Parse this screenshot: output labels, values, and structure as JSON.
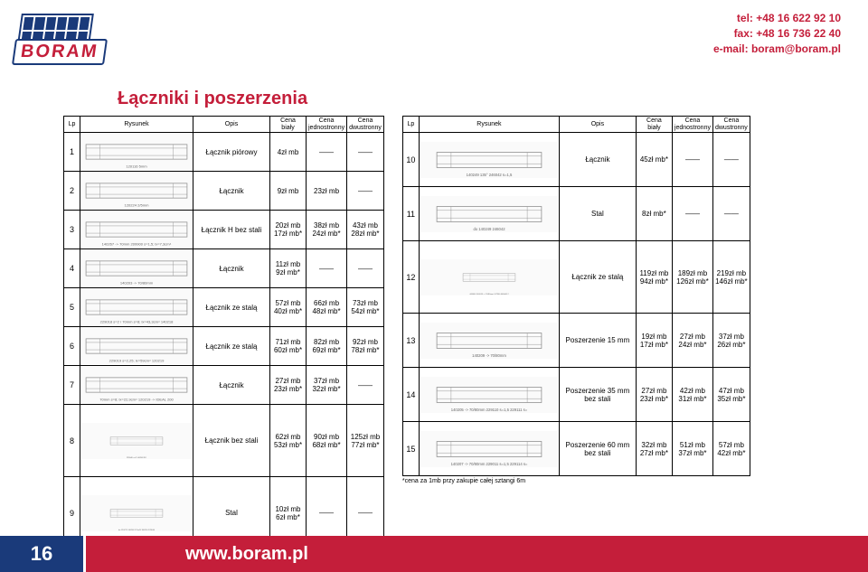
{
  "logo_text": "BORAM",
  "contact": {
    "tel": "tel: +48 16 622 92 10",
    "fax": "fax: +48 16 736 22 40",
    "email": "e-mail: boram@boram.pl"
  },
  "page_title": "Łączniki i poszerzenia",
  "headers": {
    "lp": "Lp",
    "rysunek": "Rysunek",
    "opis": "Opis",
    "cena_bialy": "Cena",
    "cena_bialy_sub": "biały",
    "cena_jedno": "Cena",
    "cena_jedno_sub": "jednostronny",
    "cena_dwu": "Cena",
    "cena_dwu_sub": "dwustronny"
  },
  "left_rows": [
    {
      "lp": "1",
      "draw": "120116 5mm",
      "opis": "Łącznik piórowy",
      "c1": "4zł mb",
      "c2": "——",
      "c3": "——"
    },
    {
      "lp": "2",
      "draw": "120224 2/5mm",
      "opis": "Łącznik",
      "c1": "9zł mb",
      "c2": "23zł mb",
      "c3": "——"
    },
    {
      "lp": "3",
      "draw": "140267 -> 70mm 209900 s=1,5; lx=7,3cm⁴",
      "opis": "Łącznik H bez stali",
      "c1": "20zł mb\n17zł mb*",
      "c2": "38zł mb\n24zł mb*",
      "c3": "43zł mb\n28zł mb*"
    },
    {
      "lp": "4",
      "draw": "140203 -> 70/80mm",
      "opis": "Łącznik",
      "c1": "11zł mb\n9zł mb*",
      "c2": "——",
      "c3": "——"
    },
    {
      "lp": "5",
      "draw": "229018 s=2 / 70mm s=8; lx=43,3cm⁴ 140218 -> IDEAL 4000/5000",
      "opis": "Łącznik ze stalą",
      "c1": "57zł mb\n40zł mb*",
      "c2": "66zł mb\n48zł mb*",
      "c3": "73zł mb\n54zł mb*"
    },
    {
      "lp": "6",
      "draw": "229019 s=2,25; lx=59cm⁴ 120219",
      "opis": "Łącznik ze stalą",
      "c1": "71zł mb\n60zł mb*",
      "c2": "82zł mb\n69zł mb*",
      "c3": "92zł mb\n78zł mb*"
    },
    {
      "lp": "7",
      "draw": "70mm s=8; lx=22,9cm⁴ 120219 -> IDEAL 2000-8000 120256",
      "opis": "Łącznik",
      "c1": "27zł mb\n23zł mb*",
      "c2": "37zł mb\n32zł mb*",
      "c3": "——"
    },
    {
      "lp": "8",
      "draw": "229040 s=2 140248 90°",
      "opis": "Łącznik bez stali",
      "c1": "62zł mb\n53zł mb*",
      "c2": "90zł mb\n68zł mb*",
      "c3": "125zł mb\n77zł mb*"
    },
    {
      "lp": "9",
      "draw": "do 120275 140248 170x45 180250 229040",
      "opis": "Stal",
      "c1": "10zł mb\n6zł mb*",
      "c2": "——",
      "c3": "——"
    }
  ],
  "right_rows": [
    {
      "lp": "10",
      "draw": "140249 135° 246042 s=1,5",
      "opis": "Łącznik",
      "c1": "45zł mb*",
      "c2": "——",
      "c3": "——"
    },
    {
      "lp": "11",
      "draw": "do 140249 246042",
      "opis": "Stal",
      "c1": "8zł mb*",
      "c2": "——",
      "c3": "——"
    },
    {
      "lp": "12",
      "draw": "446040 140243 -> 70/80mm 147340 446040 229110 s=1,5 229111 s=2 246040 s=3,0 140244 -> 70/80/85mm IDEAL 4000/8000 lub poszerzenie 70mm szer. zab.",
      "opis": "Łącznik ze stalą",
      "c1": "119zł mb\n94zł mb*",
      "c2": "189zł mb\n126zł mb*",
      "c3": "219zł mb\n146zł mb*"
    },
    {
      "lp": "13",
      "draw": "140209 -> 70/80mm",
      "opis": "Poszerzenie 15 mm",
      "c1": "19zł mb\n17zł mb*",
      "c2": "27zł mb\n24zł mb*",
      "c3": "37zł mb\n26zł mb*"
    },
    {
      "lp": "14",
      "draw": "140205 -> 70/80mm 229110 s=1,5 229111 s=2 246032",
      "opis": "Poszerzenie 35 mm bez stali",
      "c1": "27zł mb\n23zł mb*",
      "c2": "42zł mb\n31zł mb*",
      "c3": "47zł mb\n35zł mb*"
    },
    {
      "lp": "15",
      "draw": "140207 -> 70/80mm 229011 s=1,5 229114 s=2 229013 s=2 246020",
      "opis": "Poszerzenie 60 mm bez stali",
      "c1": "32zł mb\n27zł mb*",
      "c2": "51zł mb\n37zł mb*",
      "c3": "57zł mb\n42zł mb*"
    }
  ],
  "footnote": "*cena za 1mb przy zakupie całej sztangi 6m",
  "footer": {
    "page": "16",
    "url": "www.boram.pl"
  },
  "colors": {
    "red": "#c41e3a",
    "blue": "#1a3a7a"
  }
}
